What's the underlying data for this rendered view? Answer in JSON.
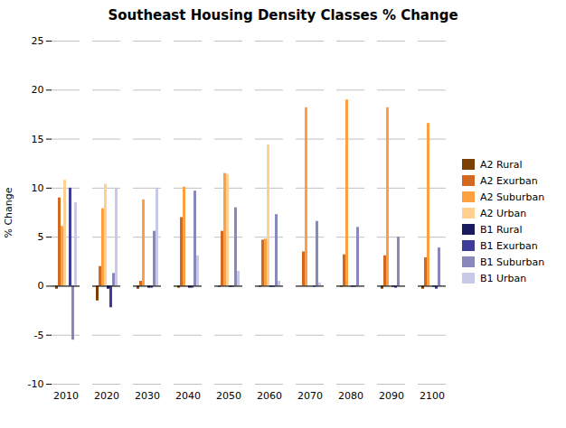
{
  "chart_data": {
    "type": "bar",
    "title": "Southeast Housing Density Classes % Change",
    "ylabel": "% Change",
    "categories": [
      2010,
      2020,
      2030,
      2040,
      2050,
      2060,
      2070,
      2080,
      2090,
      2100
    ],
    "series": [
      {
        "name": "A2 Rural",
        "color": "#7B3F00",
        "values": [
          -0.3,
          -1.5,
          -0.3,
          -0.2,
          -0.1,
          -0.1,
          0.0,
          -0.1,
          -0.3,
          -0.3
        ]
      },
      {
        "name": "A2 Exurban",
        "color": "#D2691E",
        "values": [
          9.0,
          2.0,
          0.5,
          7.0,
          5.6,
          4.7,
          3.5,
          3.2,
          3.1,
          2.9
        ]
      },
      {
        "name": "A2 Suburban",
        "color": "#FFA040",
        "values": [
          6.1,
          7.9,
          8.8,
          10.1,
          11.5,
          4.8,
          18.2,
          19.0,
          18.2,
          16.6
        ]
      },
      {
        "name": "A2 Urban",
        "color": "#FFD090",
        "values": [
          10.8,
          10.4,
          0.0,
          0.0,
          11.4,
          14.4,
          0.0,
          0.0,
          0.0,
          0.0
        ]
      },
      {
        "name": "B1 Rural",
        "color": "#1A1A5E",
        "values": [
          0.0,
          -0.3,
          -0.2,
          -0.2,
          -0.1,
          -0.1,
          0.0,
          -0.1,
          -0.1,
          -0.1
        ]
      },
      {
        "name": "B1 Exurban",
        "color": "#3D3D99",
        "values": [
          10.0,
          -2.2,
          -0.2,
          -0.2,
          -0.1,
          -0.1,
          -0.1,
          -0.1,
          -0.2,
          -0.3
        ]
      },
      {
        "name": "B1 Suburban",
        "color": "#8888BB",
        "values": [
          -5.5,
          1.3,
          5.6,
          9.7,
          8.0,
          7.3,
          6.6,
          6.0,
          5.0,
          3.9
        ]
      },
      {
        "name": "B1 Urban",
        "color": "#C8C8E8",
        "values": [
          8.5,
          9.9,
          9.9,
          3.1,
          1.5,
          0.5,
          0.3,
          0.0,
          0.0,
          0.0
        ]
      }
    ],
    "ylim": [
      -10,
      25
    ],
    "yticks": [
      -10,
      -5,
      0,
      5,
      10,
      15,
      20,
      25
    ],
    "grid": true,
    "legend": "right"
  }
}
